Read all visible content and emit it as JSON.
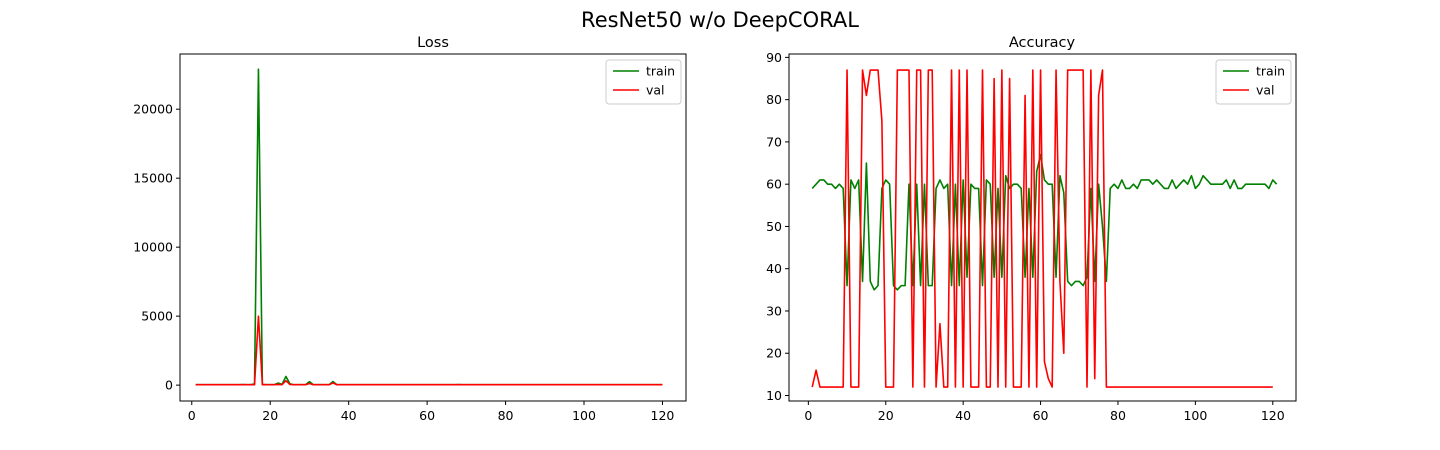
{
  "figure": {
    "title": "ResNet50 w/o DeepCORAL"
  },
  "chart_data": [
    {
      "type": "line",
      "title": "Loss",
      "xlabel": "",
      "ylabel": "",
      "xlim": [
        -3,
        126
      ],
      "ylim": [
        -1150,
        24000
      ],
      "xticks": [
        0,
        20,
        40,
        60,
        80,
        100,
        120
      ],
      "yticks": [
        0,
        5000,
        10000,
        15000,
        20000
      ],
      "grid": false,
      "legend": "top-right",
      "series": [
        {
          "name": "train",
          "color": "#008000",
          "x_start": 1,
          "values": [
            30,
            30,
            30,
            30,
            30,
            30,
            30,
            30,
            30,
            30,
            30,
            30,
            40,
            30,
            30,
            80,
            22900,
            50,
            30,
            30,
            30,
            150,
            50,
            630,
            100,
            30,
            30,
            30,
            30,
            250,
            30,
            30,
            30,
            30,
            30,
            260,
            30,
            30,
            30,
            30,
            30,
            30,
            30,
            30,
            30,
            30,
            30,
            30,
            30,
            30,
            30,
            30,
            30,
            30,
            30,
            30,
            30,
            30,
            30,
            30,
            30,
            30,
            30,
            30,
            30,
            30,
            30,
            40,
            30,
            30,
            30,
            30,
            30,
            30,
            30,
            30,
            30,
            30,
            30,
            30,
            30,
            30,
            30,
            30,
            30,
            30,
            30,
            30,
            30,
            30,
            30,
            30,
            30,
            30,
            30,
            30,
            30,
            30,
            30,
            30,
            30,
            30,
            30,
            30,
            30,
            30,
            30,
            30,
            30,
            30,
            30,
            30,
            30,
            30,
            30,
            30,
            30,
            30,
            30,
            30
          ]
        },
        {
          "name": "val",
          "color": "#ff0000",
          "x_start": 1,
          "values": [
            30,
            30,
            30,
            30,
            30,
            30,
            30,
            30,
            30,
            30,
            30,
            30,
            30,
            30,
            30,
            30,
            5000,
            30,
            30,
            30,
            30,
            50,
            30,
            320,
            50,
            30,
            30,
            30,
            30,
            120,
            30,
            30,
            30,
            30,
            30,
            160,
            30,
            30,
            30,
            30,
            30,
            30,
            30,
            30,
            30,
            30,
            30,
            30,
            30,
            30,
            30,
            30,
            30,
            30,
            30,
            30,
            30,
            30,
            30,
            30,
            30,
            30,
            30,
            30,
            30,
            30,
            30,
            30,
            30,
            30,
            30,
            30,
            30,
            30,
            30,
            30,
            30,
            30,
            30,
            30,
            30,
            30,
            30,
            30,
            30,
            30,
            30,
            30,
            30,
            30,
            30,
            30,
            30,
            30,
            30,
            30,
            30,
            30,
            30,
            30,
            30,
            30,
            30,
            30,
            30,
            30,
            30,
            30,
            30,
            30,
            30,
            30,
            30,
            30,
            30,
            30,
            30,
            30,
            30,
            30
          ]
        }
      ]
    },
    {
      "type": "line",
      "title": "Accuracy",
      "xlabel": "",
      "ylabel": "",
      "xlim": [
        -5,
        126
      ],
      "ylim": [
        8.7,
        90.8
      ],
      "xticks": [
        0,
        20,
        40,
        60,
        80,
        100,
        120
      ],
      "yticks": [
        10,
        20,
        30,
        40,
        50,
        60,
        70,
        80,
        90
      ],
      "grid": false,
      "legend": "top-right",
      "series": [
        {
          "name": "train",
          "color": "#008000",
          "x_start": 1,
          "values": [
            59,
            60,
            61,
            61,
            60,
            60,
            59,
            60,
            59,
            36,
            61,
            59,
            61,
            37,
            65,
            37,
            35,
            36,
            59,
            61,
            60,
            36,
            35,
            36,
            36,
            60,
            36,
            60,
            36,
            60,
            36,
            36,
            59,
            61,
            59,
            60,
            36,
            60,
            36,
            61,
            38,
            60,
            59,
            59,
            36,
            61,
            60,
            38,
            59,
            38,
            62,
            59,
            60,
            60,
            59,
            38,
            59,
            38,
            63,
            67,
            61,
            60,
            60,
            38,
            62,
            58,
            37,
            36,
            37,
            37,
            36,
            38,
            59,
            37,
            60,
            50,
            37,
            59,
            60,
            59,
            61,
            59,
            59,
            60,
            59,
            61,
            61,
            61,
            60,
            61,
            60,
            59,
            59,
            61,
            59,
            60,
            61,
            60,
            62,
            59,
            60,
            62,
            61,
            60,
            60,
            60,
            60,
            61,
            59,
            61,
            59,
            59,
            60,
            60,
            60,
            60,
            60,
            60,
            59,
            61,
            60
          ]
        },
        {
          "name": "val",
          "color": "#ff0000",
          "x_start": 1,
          "values": [
            12,
            16,
            12,
            12,
            12,
            12,
            12,
            12,
            12,
            87,
            12,
            12,
            12,
            87,
            81,
            87,
            87,
            87,
            75,
            12,
            12,
            12,
            87,
            87,
            87,
            87,
            12,
            87,
            87,
            12,
            87,
            87,
            12,
            27,
            12,
            12,
            87,
            12,
            87,
            12,
            87,
            12,
            12,
            12,
            87,
            12,
            12,
            85,
            12,
            87,
            12,
            85,
            12,
            12,
            12,
            81,
            12,
            87,
            12,
            87,
            18,
            14,
            12,
            87,
            37,
            20,
            87,
            87,
            87,
            87,
            87,
            12,
            87,
            14,
            81,
            87,
            12,
            12,
            12,
            12,
            12,
            12,
            12,
            12,
            12,
            12,
            12,
            12,
            12,
            12,
            12,
            12,
            12,
            12,
            12,
            12,
            12,
            12,
            12,
            12,
            12,
            12,
            12,
            12,
            12,
            12,
            12,
            12,
            12,
            12,
            12,
            12,
            12,
            12,
            12,
            12,
            12,
            12,
            12,
            12
          ]
        }
      ]
    }
  ]
}
